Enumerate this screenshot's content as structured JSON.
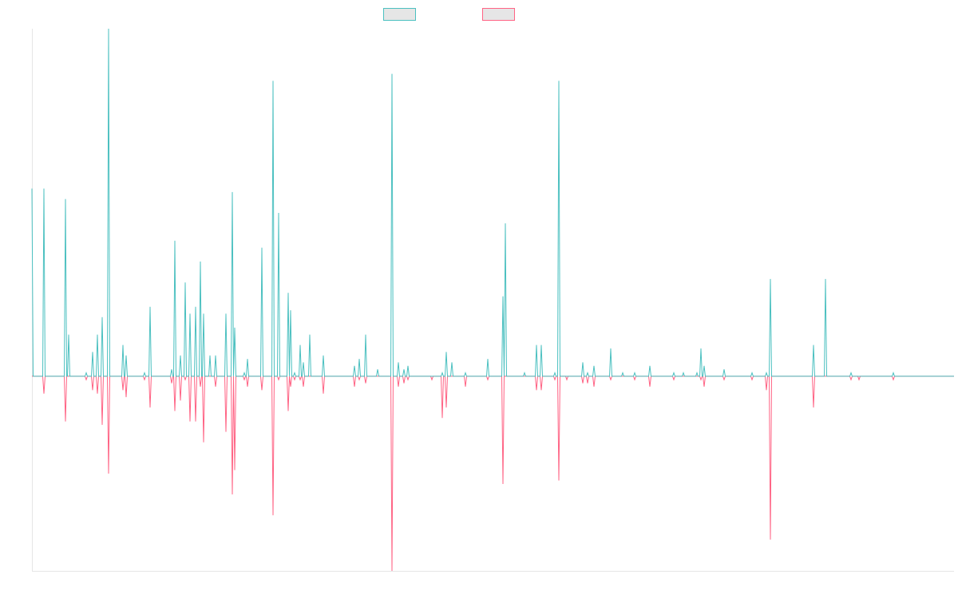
{
  "chart_data": {
    "type": "line",
    "x": [
      0,
      1.5,
      13.5,
      15,
      16.5,
      40.5,
      42,
      43.5,
      44.5,
      46,
      47.5,
      66.5,
      68,
      69.5,
      74.5,
      76,
      77.5,
      80.5,
      82,
      83.5,
      86.5,
      88,
      89.5,
      94.5,
      96,
      97.5,
      112.5,
      114,
      115.5,
      116.5,
      118,
      119.5,
      139.5,
      141,
      142.5,
      146.5,
      148,
      149.5,
      173.5,
      175,
      176.5,
      177.5,
      179,
      180.5,
      184.5,
      186,
      187.5,
      190.5,
      192,
      193.5,
      196.5,
      198,
      199.5,
      203.5,
      205,
      206.5,
      209.5,
      211,
      212.5,
      213.5,
      215,
      216.5,
      221.5,
      223,
      224.5,
      228.5,
      230,
      231.5,
      241.5,
      243,
      244.5,
      249.5,
      251,
      252.5,
      252.5,
      254,
      255.5,
      264.5,
      266,
      267.5,
      268.5,
      270,
      271.5,
      286.5,
      288,
      289.5,
      300.5,
      302,
      303.5,
      307.5,
      309,
      310.5,
      319.5,
      321,
      322.5,
      322.5,
      324,
      325.5,
      327.5,
      329,
      330.5,
      334.5,
      336,
      337.5,
      338.5,
      340,
      341.5,
      346.5,
      348,
      349.5,
      363.5,
      365,
      366.5,
      402.5,
      404,
      405.5,
      408.5,
      410,
      411.5,
      416.5,
      418,
      419.5,
      431.5,
      433,
      434.5,
      449.5,
      451,
      452.5,
      457.5,
      459,
      460.5,
      464.5,
      466,
      467.5,
      469.5,
      471,
      472.5,
      499.5,
      501,
      502.5,
      512.5,
      514,
      515.5,
      517.5,
      519,
      520.5,
      524.5,
      526,
      527.5,
      541.5,
      543,
      544.5,
      569.5,
      571,
      572.5,
      588.5,
      590,
      591.5,
      591.5,
      593,
      594.5,
      615.5,
      617,
      618.5,
      630.5,
      632,
      633.5,
      636.5,
      638,
      639.5,
      653.5,
      655,
      656.5,
      658.5,
      660,
      661.5,
      668.5,
      670,
      671.5,
      688.5,
      690,
      691.5,
      694.5,
      696,
      697.5,
      702.5,
      704,
      705.5,
      723.5,
      725,
      726.5,
      738.5,
      740,
      741.5,
      753.5,
      755,
      756.5,
      772.5,
      774,
      775.5,
      802.5,
      804,
      805.5,
      814.5,
      816,
      817.5,
      831.5,
      833,
      834.5,
      836.5,
      838,
      839.5,
      840.5,
      842,
      843.5,
      865.5,
      867,
      868.5,
      900.5,
      902,
      903.5,
      918.5,
      920,
      921.5,
      923.5,
      925,
      926.5,
      977.5,
      979,
      980.5,
      992.5,
      994,
      995.5,
      1024.5,
      1026,
      1027.5,
      1034.5,
      1036,
      1037.5,
      1077.5,
      1079,
      1080.5,
      1155
    ],
    "series": [
      {
        "color": "#4bc0c0",
        "values": [
          54,
          0,
          0,
          54,
          0,
          0,
          51,
          0,
          0,
          12,
          0,
          0,
          1,
          0,
          0,
          7,
          0,
          0,
          12,
          0,
          0,
          17,
          0,
          0,
          100,
          0,
          0,
          9,
          0,
          0,
          6,
          0,
          0,
          1,
          0,
          0,
          20,
          0,
          0,
          2,
          0,
          0,
          39,
          0,
          0,
          6,
          0,
          0,
          27,
          0,
          0,
          18,
          0,
          0,
          20,
          0,
          0,
          33,
          0,
          0,
          18,
          0,
          0,
          6,
          0,
          0,
          6,
          0,
          0,
          18,
          0,
          0,
          53,
          0,
          0,
          14,
          0,
          0,
          1,
          0,
          0,
          5,
          0,
          0,
          37,
          0,
          0,
          85,
          0,
          0,
          47,
          0,
          0,
          24,
          0,
          0,
          19,
          0,
          0,
          1,
          0,
          0,
          9,
          0,
          0,
          4,
          0,
          0,
          12,
          0,
          0,
          6,
          0,
          0,
          3,
          0,
          0,
          5,
          0,
          0,
          12,
          0,
          0,
          2,
          0,
          0,
          87,
          0,
          0,
          4,
          0,
          0,
          2,
          0,
          0,
          3,
          0,
          0,
          0,
          0,
          0,
          1,
          0,
          0,
          7,
          0,
          0,
          4,
          0,
          0,
          1,
          0,
          0,
          5,
          0,
          0,
          23,
          0,
          0,
          44,
          0,
          0,
          1,
          0,
          0,
          9,
          0,
          0,
          9,
          0,
          0,
          1,
          0,
          0,
          85,
          0,
          0,
          0,
          0,
          0,
          4,
          0,
          0,
          1,
          0,
          0,
          3,
          0,
          0,
          8,
          0,
          0,
          1,
          0,
          0,
          1,
          0,
          0,
          3,
          0,
          0,
          1,
          0,
          0,
          1,
          0,
          0,
          1,
          0,
          0,
          8,
          0,
          0,
          3,
          0,
          0,
          2,
          0,
          0,
          1,
          0,
          0,
          1,
          0,
          0,
          28,
          0,
          0,
          9,
          0,
          0,
          28,
          0,
          0,
          1,
          0,
          0,
          0,
          0,
          0,
          1,
          0,
          0
        ]
      },
      {
        "color": "#ff6384",
        "values": [
          0,
          0,
          0,
          -5,
          0,
          0,
          -13,
          0,
          0,
          0,
          0,
          0,
          -1,
          0,
          0,
          -4,
          0,
          0,
          -5,
          0,
          0,
          -14,
          0,
          0,
          -28,
          0,
          0,
          -4,
          0,
          0,
          -6,
          0,
          0,
          -1,
          0,
          0,
          -9,
          0,
          0,
          -2,
          0,
          0,
          -10,
          0,
          0,
          -7,
          0,
          0,
          -1,
          0,
          0,
          -13,
          0,
          0,
          -13,
          0,
          0,
          -3,
          0,
          0,
          -19,
          0,
          0,
          0,
          0,
          0,
          -3,
          0,
          0,
          -16,
          0,
          0,
          -34,
          0,
          0,
          -27,
          0,
          0,
          -1,
          0,
          0,
          -3,
          0,
          0,
          -4,
          0,
          0,
          -40,
          0,
          0,
          -1,
          0,
          0,
          -10,
          0,
          0,
          -3,
          0,
          0,
          -1,
          0,
          0,
          -1,
          0,
          0,
          -3,
          0,
          0,
          0,
          0,
          0,
          -5,
          0,
          0,
          -3,
          0,
          0,
          -1,
          0,
          0,
          -2,
          0,
          0,
          0,
          0,
          0,
          -56,
          0,
          0,
          -3,
          0,
          0,
          -2,
          0,
          0,
          -1,
          0,
          0,
          -1,
          0,
          0,
          -12,
          0,
          0,
          -9,
          0,
          0,
          0,
          0,
          0,
          -3,
          0,
          0,
          -1,
          0,
          0,
          -31,
          0,
          0,
          0,
          0,
          0,
          0,
          0,
          0,
          -4,
          0,
          0,
          -4,
          0,
          0,
          -1,
          0,
          0,
          -30,
          0,
          0,
          -1,
          0,
          0,
          -2,
          0,
          0,
          -2,
          0,
          0,
          -3,
          0,
          0,
          -1,
          0,
          0,
          0,
          0,
          0,
          -1,
          0,
          0,
          -3,
          0,
          0,
          -1,
          0,
          0,
          0,
          0,
          0,
          0,
          0,
          0,
          -1,
          0,
          0,
          -3,
          0,
          0,
          -1,
          0,
          0,
          -1,
          0,
          0,
          -4,
          0,
          0,
          -47,
          0,
          0,
          -9,
          0,
          0,
          0,
          0,
          0,
          -1,
          0,
          0,
          -1,
          0,
          0,
          -1,
          0,
          0
        ]
      }
    ],
    "xlim": [
      0,
      1155
    ],
    "ylim": [
      -56,
      100
    ],
    "grid": false,
    "legend": "top"
  }
}
